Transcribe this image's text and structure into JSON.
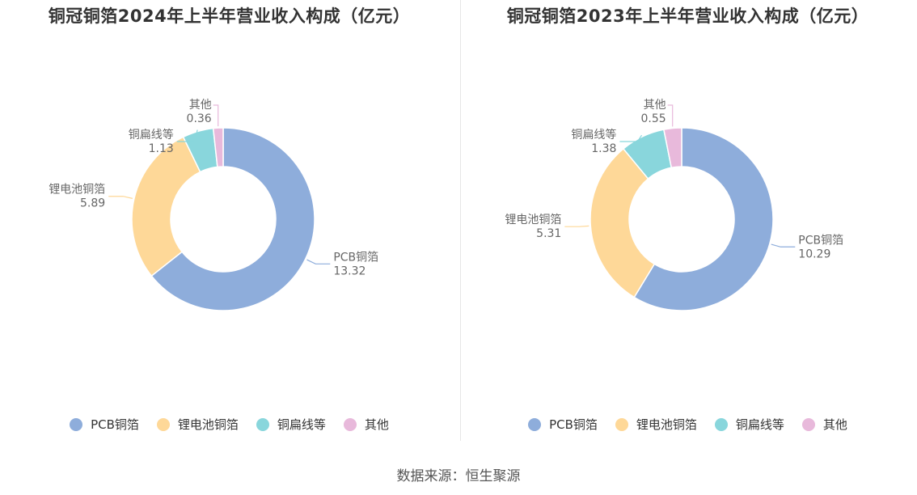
{
  "source": "数据来源：恒生聚源",
  "chart_data": [
    {
      "type": "pie",
      "title": "铜冠铜箔2024年上半年营业收入构成（亿元）",
      "categories": [
        "PCB铜箔",
        "锂电池铜箔",
        "铜扁线等",
        "其他"
      ],
      "values": [
        13.32,
        5.89,
        1.13,
        0.36
      ],
      "value_labels": [
        "13.32",
        "5.89",
        "1.13",
        "0.36"
      ],
      "colors": [
        "#8eaddb",
        "#fed898",
        "#89d6dc",
        "#e8b9db"
      ],
      "legend": "bottom"
    },
    {
      "type": "pie",
      "title": "铜冠铜箔2023年上半年营业收入构成（亿元）",
      "categories": [
        "PCB铜箔",
        "锂电池铜箔",
        "铜扁线等",
        "其他"
      ],
      "values": [
        10.29,
        5.31,
        1.38,
        0.55
      ],
      "value_labels": [
        "10.29",
        "5.31",
        "1.38",
        "0.55"
      ],
      "colors": [
        "#8eaddb",
        "#fed898",
        "#89d6dc",
        "#e8b9db"
      ],
      "legend": "bottom"
    }
  ]
}
